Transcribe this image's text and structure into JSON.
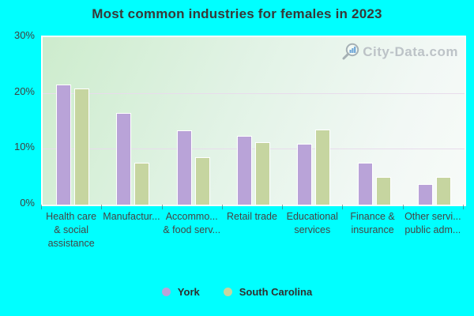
{
  "watermark": {
    "label": "City-Data.com"
  },
  "chart_data": {
    "type": "bar",
    "title": "Most common industries for females in 2023",
    "categories": [
      "Health care & social assistance",
      "Manufactur...",
      "Accommo... & food serv...",
      "Retail trade",
      "Educational services",
      "Finance & insurance",
      "Other servi... public adm..."
    ],
    "category_lines": [
      [
        "Health care",
        "& social",
        "assistance"
      ],
      [
        "Manufactur..."
      ],
      [
        "Accommo...",
        "& food serv..."
      ],
      [
        "Retail trade"
      ],
      [
        "Educational",
        "services"
      ],
      [
        "Finance &",
        "insurance"
      ],
      [
        "Other servi...",
        "public adm..."
      ]
    ],
    "series": [
      {
        "name": "York",
        "color": "#b9a3d8",
        "values": [
          21.5,
          16.4,
          13.3,
          12.3,
          10.9,
          7.5,
          3.7
        ]
      },
      {
        "name": "South Carolina",
        "color": "#c6d5a0",
        "values": [
          20.8,
          7.5,
          8.5,
          11.2,
          13.4,
          5.0,
          5.0
        ]
      }
    ],
    "ylim": [
      0,
      30
    ],
    "yticks": [
      {
        "label": "30%",
        "value": 30
      },
      {
        "label": "20%",
        "value": 20
      },
      {
        "label": "10%",
        "value": 10
      },
      {
        "label": "0%",
        "value": 0
      }
    ],
    "grid": true,
    "legend_position": "bottom",
    "colors": {
      "background": "#00ffff",
      "gridline": "#e8dcec",
      "axis_text": "#444444",
      "title_text": "#383838",
      "watermark_text": "#b4bac0",
      "watermark_icon_bars": "#5b9bd5",
      "watermark_icon_ring": "#9aa4ab"
    }
  }
}
